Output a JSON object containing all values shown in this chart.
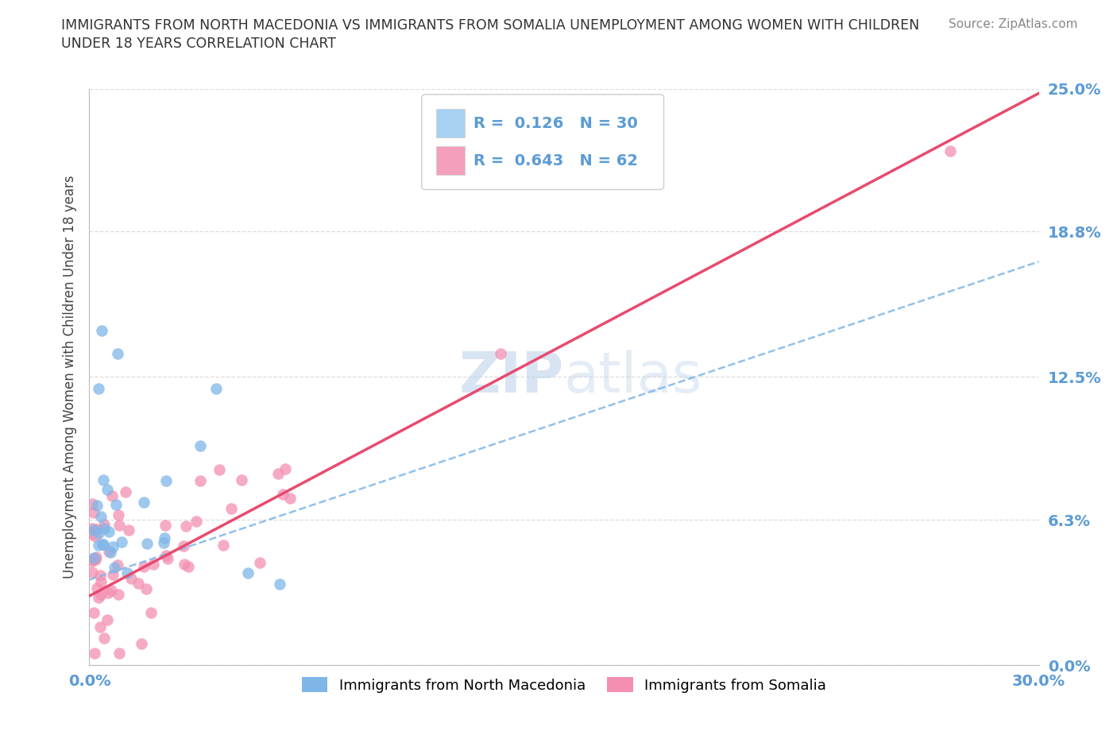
{
  "title_line1": "IMMIGRANTS FROM NORTH MACEDONIA VS IMMIGRANTS FROM SOMALIA UNEMPLOYMENT AMONG WOMEN WITH CHILDREN",
  "title_line2": "UNDER 18 YEARS CORRELATION CHART",
  "source": "Source: ZipAtlas.com",
  "ylabel": "Unemployment Among Women with Children Under 18 years",
  "xlim": [
    0.0,
    0.3
  ],
  "ylim": [
    0.0,
    0.25
  ],
  "ytick_labels": [
    "0.0%",
    "6.3%",
    "12.5%",
    "18.8%",
    "25.0%"
  ],
  "ytick_values": [
    0.0,
    0.063,
    0.125,
    0.188,
    0.25
  ],
  "watermark": "ZIPatlas",
  "series1_color": "#7eb6e8",
  "series2_color": "#f48fb1",
  "series1_label": "Immigrants from North Macedonia",
  "series2_label": "Immigrants from Somalia",
  "r1": 0.126,
  "n1": 30,
  "r2": 0.643,
  "n2": 62,
  "trend1_color": "#7eb6e8",
  "trend2_color": "#e84a6f",
  "background_color": "#ffffff",
  "grid_color": "#cccccc",
  "trend1_start_y": 0.037,
  "trend1_end_y": 0.175,
  "trend2_start_y": 0.03,
  "trend2_end_y": 0.248
}
